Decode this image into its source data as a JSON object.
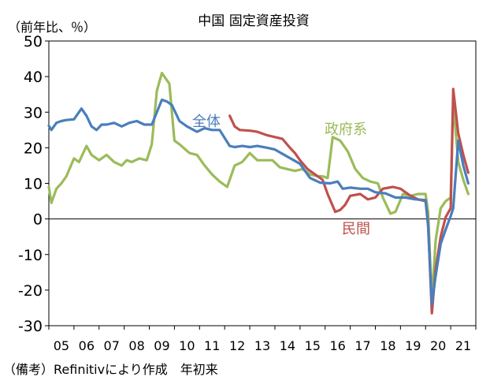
{
  "chart_data": {
    "type": "line",
    "title": "中国 固定資産投資",
    "unit_label": "（前年比、％）",
    "source_note": "（備考）Refinitivにより作成　年初来",
    "ylim": [
      -30,
      50
    ],
    "yticks": [
      50,
      40,
      30,
      20,
      10,
      0,
      -10,
      -20,
      -30
    ],
    "xlim": [
      2005,
      2022
    ],
    "xtick_labels": [
      "05",
      "06",
      "07",
      "08",
      "09",
      "10",
      "11",
      "12",
      "13",
      "14",
      "15",
      "16",
      "17",
      "18",
      "19",
      "20",
      "21"
    ],
    "grid": false,
    "series": [
      {
        "name": "全体",
        "color": "#4a7ebb",
        "x": [
          2005.0,
          2005.1,
          2005.3,
          2005.5,
          2005.7,
          2006.0,
          2006.3,
          2006.5,
          2006.7,
          2006.9,
          2007.1,
          2007.3,
          2007.6,
          2007.9,
          2008.2,
          2008.5,
          2008.8,
          2009.1,
          2009.3,
          2009.5,
          2009.7,
          2009.9,
          2010.2,
          2010.5,
          2010.9,
          2011.2,
          2011.5,
          2011.8,
          2012.2,
          2012.4,
          2012.7,
          2013.0,
          2013.3,
          2013.7,
          2014.0,
          2014.5,
          2015.0,
          2015.4,
          2015.8,
          2016.2,
          2016.5,
          2016.7,
          2017.0,
          2017.4,
          2017.7,
          2018.0,
          2018.4,
          2018.8,
          2019.2,
          2019.6,
          2020.0,
          2020.1,
          2020.25,
          2020.4,
          2020.6,
          2020.8,
          2021.0,
          2021.1,
          2021.3,
          2021.5,
          2021.7
        ],
        "y": [
          26.2,
          25,
          27,
          27.5,
          27.8,
          28,
          31,
          29,
          26,
          25,
          26.5,
          26.5,
          27,
          26,
          27,
          27.5,
          26.5,
          26.5,
          30,
          33.5,
          33,
          32,
          27.5,
          26,
          24.5,
          25.5,
          25,
          25,
          20.5,
          20.2,
          20.5,
          20.2,
          20.5,
          20,
          19.5,
          17.5,
          15.5,
          11.5,
          10.2,
          10,
          10.5,
          8.5,
          8.8,
          8.5,
          8.5,
          7.5,
          7.2,
          6.0,
          6.0,
          5.5,
          5.3,
          -2,
          -24,
          -16,
          -7,
          -3,
          0.8,
          3,
          22,
          15,
          10
        ]
      },
      {
        "name": "民間",
        "color": "#c0504d",
        "x": [
          2012.2,
          2012.4,
          2012.6,
          2013.0,
          2013.3,
          2013.7,
          2014.0,
          2014.3,
          2014.6,
          2014.8,
          2015.0,
          2015.3,
          2015.6,
          2015.9,
          2016.1,
          2016.4,
          2016.6,
          2016.8,
          2017.0,
          2017.4,
          2017.7,
          2018.0,
          2018.3,
          2018.7,
          2019.0,
          2019.4,
          2019.7,
          2020.0,
          2020.1,
          2020.25,
          2020.4,
          2020.6,
          2020.8,
          2021.0,
          2021.1,
          2021.3,
          2021.5,
          2021.7
        ],
        "y": [
          29,
          26,
          25,
          24.8,
          24.5,
          23.5,
          23,
          22.5,
          20,
          18.5,
          16.5,
          14,
          12.5,
          11,
          7,
          2,
          2.5,
          4,
          6.5,
          7,
          5.5,
          6,
          8.5,
          9,
          8.5,
          6.5,
          5.5,
          5,
          -1,
          -26.5,
          -14,
          -5,
          0.5,
          3,
          36.5,
          24,
          18,
          13
        ]
      },
      {
        "name": "政府系",
        "color": "#9bbb59",
        "x": [
          2005.0,
          2005.1,
          2005.3,
          2005.5,
          2005.7,
          2006.0,
          2006.2,
          2006.5,
          2006.7,
          2007.0,
          2007.3,
          2007.6,
          2007.9,
          2008.1,
          2008.3,
          2008.6,
          2008.9,
          2009.1,
          2009.3,
          2009.5,
          2009.8,
          2010.0,
          2010.2,
          2010.6,
          2010.9,
          2011.2,
          2011.5,
          2011.8,
          2012.1,
          2012.4,
          2012.7,
          2013.0,
          2013.3,
          2013.6,
          2013.9,
          2014.2,
          2014.5,
          2014.8,
          2015.1,
          2015.4,
          2015.7,
          2015.9,
          2016.1,
          2016.3,
          2016.6,
          2016.9,
          2017.2,
          2017.5,
          2017.8,
          2018.1,
          2018.3,
          2018.6,
          2018.8,
          2019.1,
          2019.4,
          2019.7,
          2020.0,
          2020.1,
          2020.25,
          2020.4,
          2020.6,
          2020.8,
          2021.0,
          2021.1,
          2021.3,
          2021.5,
          2021.7
        ],
        "y": [
          9,
          4.5,
          8.5,
          10,
          12,
          17,
          16,
          20.5,
          18,
          16.5,
          18,
          16,
          15,
          16.5,
          16,
          17,
          16.5,
          21,
          36,
          41,
          38,
          22,
          21,
          18.5,
          18,
          15,
          12.5,
          10.5,
          9,
          15,
          16,
          18.5,
          16.5,
          16.5,
          16.5,
          14.5,
          14,
          13.5,
          14,
          12.5,
          12,
          12,
          11.5,
          23,
          22,
          19,
          14,
          11.5,
          10.5,
          10,
          6,
          1.5,
          2,
          7,
          6.5,
          7,
          7,
          2,
          -23,
          -6,
          3,
          5,
          6,
          33,
          16,
          11,
          7
        ]
      }
    ],
    "annotations": [
      {
        "text": "全体",
        "series": "全体"
      },
      {
        "text": "政府系",
        "series": "政府系"
      },
      {
        "text": "民間",
        "series": "民間"
      }
    ]
  }
}
